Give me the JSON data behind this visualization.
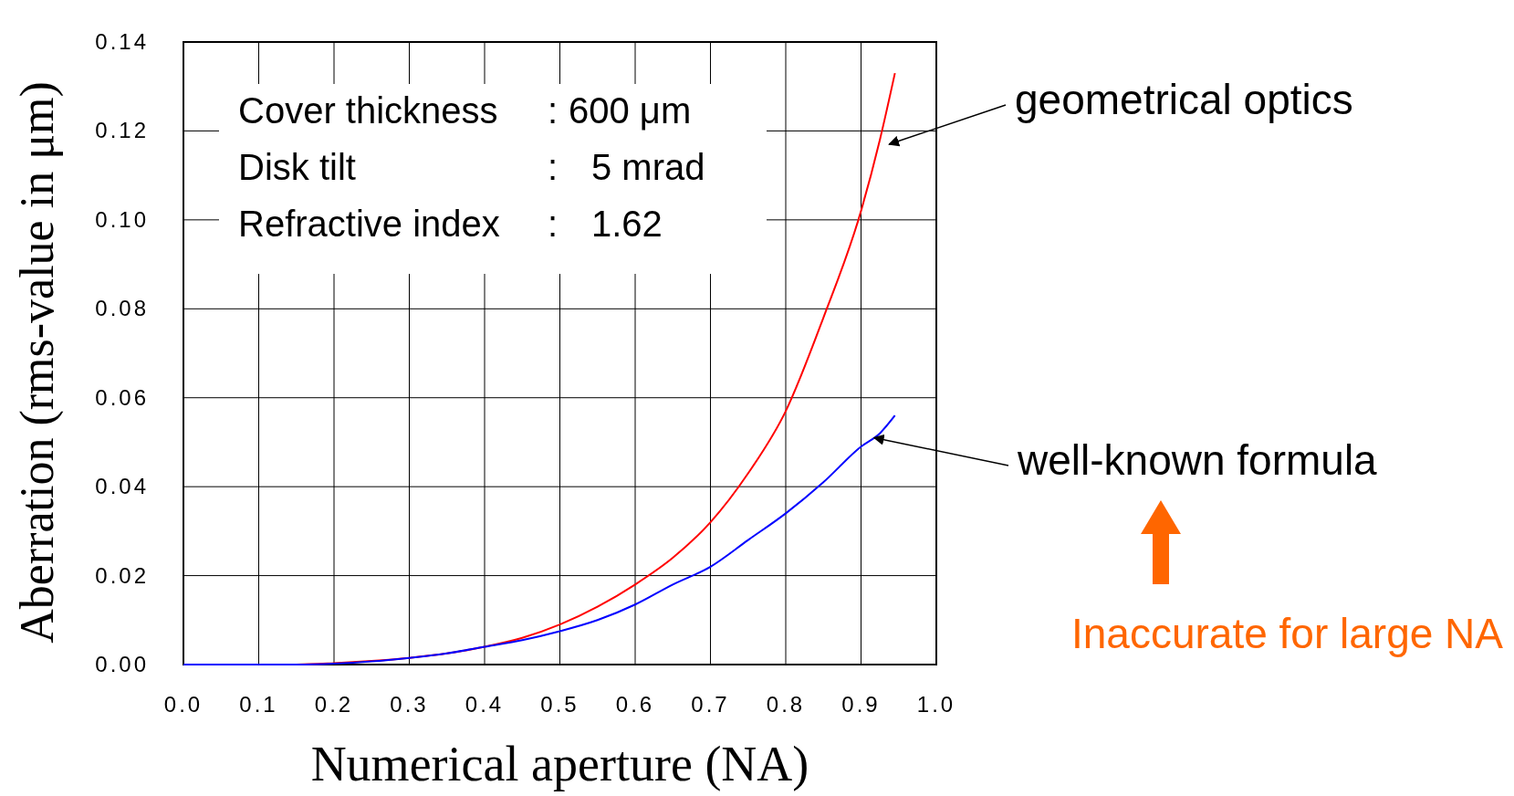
{
  "chart_data": {
    "type": "line",
    "xlabel": "Numerical aperture (NA)",
    "ylabel": "Aberration (rms-value in  μm)",
    "x": [
      0,
      0.1,
      0.15,
      0.2,
      0.25,
      0.3,
      0.35,
      0.4,
      0.45,
      0.5,
      0.55,
      0.6,
      0.65,
      0.7,
      0.75,
      0.8,
      0.85,
      0.9,
      0.925,
      0.945
    ],
    "series": [
      {
        "color": "#ff0000",
        "values": [
          0,
          0,
          0,
          0.0003,
          0.0008,
          0.0015,
          0.0025,
          0.004,
          0.006,
          0.009,
          0.013,
          0.018,
          0.024,
          0.032,
          0.043,
          0.057,
          0.078,
          0.102,
          0.118,
          0.133
        ]
      },
      {
        "color": "#0000ff",
        "values": [
          0,
          0,
          0,
          0.0002,
          0.0007,
          0.0015,
          0.0025,
          0.004,
          0.0055,
          0.0075,
          0.01,
          0.0135,
          0.018,
          0.022,
          0.028,
          0.034,
          0.041,
          0.049,
          0.052,
          0.056
        ]
      }
    ],
    "xlim": [
      0,
      1
    ],
    "ylim": [
      0,
      0.14
    ],
    "xticks": [
      {
        "value": 0,
        "label": "0.0"
      },
      0.1,
      0.2,
      0.3,
      0.4,
      0.5,
      0.6,
      0.7,
      0.8,
      0.9,
      {
        "value": 1,
        "label": "1.0"
      }
    ],
    "yticks": [
      {
        "value": 0,
        "label": "0.00"
      },
      0.02,
      0.04,
      0.06,
      0.08,
      {
        "value": 0.1,
        "label": "0.10"
      },
      0.12,
      0.14
    ],
    "grid": true,
    "marker": "none",
    "line_style": "solid",
    "annotations": [
      "Cover thickness : 600 μm",
      "Disk tilt : 5 mrad",
      "Refractive index : 1.62",
      {
        "text": "geometrical optics",
        "x": 0.93,
        "y": 0.117
      },
      {
        "text": "well-known formula",
        "x": 0.91,
        "y": 0.051
      },
      "Inaccurate for large NA"
    ]
  }
}
